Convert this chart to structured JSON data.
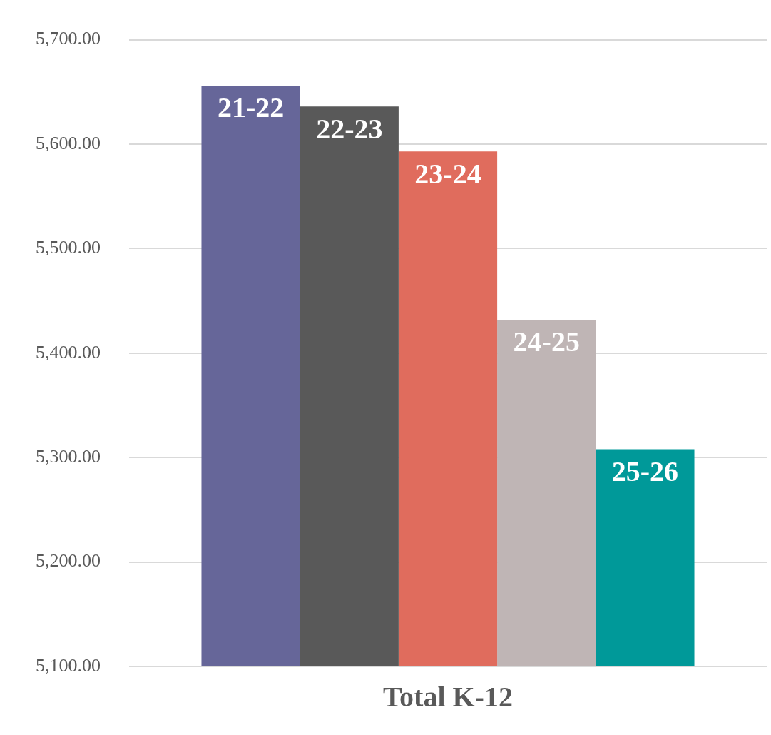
{
  "chart_data": {
    "type": "bar",
    "categories": [
      "Total K-12"
    ],
    "series": [
      {
        "name": "21-22",
        "color": "#666699",
        "values": [
          5656
        ]
      },
      {
        "name": "22-23",
        "color": "#595959",
        "values": [
          5636
        ]
      },
      {
        "name": "23-24",
        "color": "#e06c5d",
        "values": [
          5593
        ]
      },
      {
        "name": "24-25",
        "color": "#bfb5b5",
        "values": [
          5432
        ]
      },
      {
        "name": "25-26",
        "color": "#009999",
        "values": [
          5308
        ]
      }
    ],
    "ylim": [
      5100,
      5700
    ],
    "yticks": [
      {
        "value": 5100,
        "label": "5,100.00"
      },
      {
        "value": 5200,
        "label": "5,200.00"
      },
      {
        "value": 5300,
        "label": "5,300.00"
      },
      {
        "value": 5400,
        "label": "5,400.00"
      },
      {
        "value": 5500,
        "label": "5,500.00"
      },
      {
        "value": 5600,
        "label": "5,600.00"
      },
      {
        "value": 5700,
        "label": "5,700.00"
      }
    ],
    "grid": "y",
    "legend": false
  }
}
